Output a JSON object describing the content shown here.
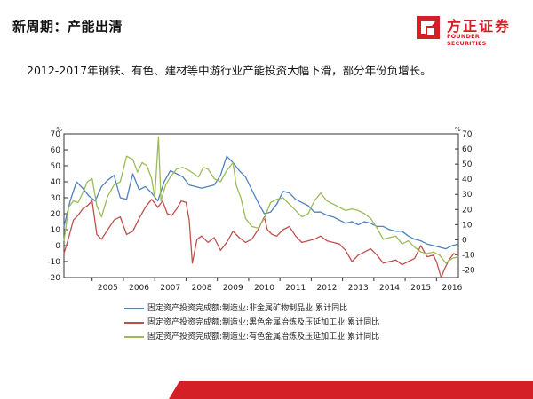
{
  "header": {
    "title": "新周期：产能出清",
    "subtitle": "2012-2017年钢铁、有色、建材等中游行业产能投资大幅下滑，部分年份负增长。"
  },
  "logo": {
    "name_cn": "方正证券",
    "name_en": "FOUNDER SECURITIES",
    "color": "#d51f26"
  },
  "chart_data": {
    "type": "line",
    "x_tick_labels": [
      "2005",
      "2006",
      "2007",
      "2008",
      "2009",
      "2010",
      "2011",
      "2012",
      "2013",
      "2014",
      "2015",
      "2016"
    ],
    "x_range": [
      2004.1,
      2016.7
    ],
    "y_left": {
      "unit": "%",
      "ticks": [
        -20,
        -10,
        0,
        10,
        20,
        30,
        40,
        50,
        60,
        70
      ],
      "range": [
        -20,
        70
      ]
    },
    "y_right": {
      "unit": "%",
      "ticks": [
        -20,
        -10,
        0,
        10,
        20,
        30,
        40,
        50,
        60,
        70
      ],
      "range": [
        -25,
        70
      ]
    },
    "grid": false,
    "legend_position": "bottom",
    "series": [
      {
        "name": "固定资产投资完成额:制造业:非金属矿物制品业:累计同比",
        "color": "#4f81bd",
        "axis": "left",
        "points": [
          [
            2004.1,
            12
          ],
          [
            2004.3,
            28
          ],
          [
            2004.5,
            40
          ],
          [
            2004.7,
            36
          ],
          [
            2004.9,
            31
          ],
          [
            2005.1,
            28
          ],
          [
            2005.3,
            37
          ],
          [
            2005.5,
            41
          ],
          [
            2005.7,
            44
          ],
          [
            2005.9,
            30
          ],
          [
            2006.1,
            29
          ],
          [
            2006.3,
            45
          ],
          [
            2006.5,
            35
          ],
          [
            2006.7,
            37
          ],
          [
            2006.9,
            33
          ],
          [
            2007.1,
            28
          ],
          [
            2007.3,
            40
          ],
          [
            2007.5,
            47
          ],
          [
            2007.7,
            45
          ],
          [
            2007.9,
            43
          ],
          [
            2008.1,
            38
          ],
          [
            2008.3,
            37
          ],
          [
            2008.5,
            36
          ],
          [
            2008.7,
            37
          ],
          [
            2008.9,
            38
          ],
          [
            2009.1,
            44
          ],
          [
            2009.3,
            56
          ],
          [
            2009.5,
            52
          ],
          [
            2009.7,
            47
          ],
          [
            2009.9,
            43
          ],
          [
            2010.1,
            35
          ],
          [
            2010.3,
            27
          ],
          [
            2010.5,
            20
          ],
          [
            2010.7,
            21
          ],
          [
            2010.9,
            26
          ],
          [
            2011.1,
            34
          ],
          [
            2011.3,
            33
          ],
          [
            2011.5,
            29
          ],
          [
            2011.7,
            27
          ],
          [
            2011.9,
            25
          ],
          [
            2012.1,
            21
          ],
          [
            2012.3,
            21
          ],
          [
            2012.5,
            19
          ],
          [
            2012.7,
            18
          ],
          [
            2012.9,
            16
          ],
          [
            2013.1,
            14
          ],
          [
            2013.3,
            15
          ],
          [
            2013.5,
            13
          ],
          [
            2013.7,
            15
          ],
          [
            2013.9,
            14
          ],
          [
            2014.1,
            12
          ],
          [
            2014.3,
            12
          ],
          [
            2014.5,
            10
          ],
          [
            2014.7,
            9
          ],
          [
            2014.9,
            9
          ],
          [
            2015.1,
            6
          ],
          [
            2015.3,
            4
          ],
          [
            2015.5,
            3
          ],
          [
            2015.7,
            1
          ],
          [
            2015.9,
            0
          ],
          [
            2016.1,
            -1
          ],
          [
            2016.3,
            -2
          ],
          [
            2016.5,
            0
          ],
          [
            2016.7,
            1
          ]
        ]
      },
      {
        "name": "固定资产投资完成额:制造业:黑色金属冶炼及压延加工业:累计同比",
        "color": "#c0504d",
        "axis": "left",
        "points": [
          [
            2004.1,
            -5
          ],
          [
            2004.25,
            5
          ],
          [
            2004.4,
            16
          ],
          [
            2004.55,
            19
          ],
          [
            2004.7,
            23
          ],
          [
            2004.85,
            25
          ],
          [
            2005.0,
            28
          ],
          [
            2005.15,
            7
          ],
          [
            2005.3,
            4
          ],
          [
            2005.5,
            10
          ],
          [
            2005.7,
            16
          ],
          [
            2005.9,
            18
          ],
          [
            2006.1,
            7
          ],
          [
            2006.3,
            9
          ],
          [
            2006.5,
            17
          ],
          [
            2006.7,
            24
          ],
          [
            2006.9,
            29
          ],
          [
            2007.1,
            24
          ],
          [
            2007.25,
            28
          ],
          [
            2007.4,
            20
          ],
          [
            2007.55,
            19
          ],
          [
            2007.7,
            23
          ],
          [
            2007.85,
            28
          ],
          [
            2008.0,
            27
          ],
          [
            2008.1,
            16
          ],
          [
            2008.2,
            -11
          ],
          [
            2008.35,
            4
          ],
          [
            2008.5,
            6
          ],
          [
            2008.7,
            2
          ],
          [
            2008.9,
            5
          ],
          [
            2009.1,
            -3
          ],
          [
            2009.3,
            2
          ],
          [
            2009.5,
            9
          ],
          [
            2009.7,
            5
          ],
          [
            2009.9,
            2
          ],
          [
            2010.1,
            4
          ],
          [
            2010.3,
            10
          ],
          [
            2010.5,
            18
          ],
          [
            2010.6,
            10
          ],
          [
            2010.75,
            7
          ],
          [
            2010.9,
            6
          ],
          [
            2011.1,
            10
          ],
          [
            2011.3,
            12
          ],
          [
            2011.5,
            6
          ],
          [
            2011.7,
            2
          ],
          [
            2011.9,
            3
          ],
          [
            2012.1,
            4
          ],
          [
            2012.3,
            6
          ],
          [
            2012.5,
            3
          ],
          [
            2012.7,
            2
          ],
          [
            2012.9,
            1
          ],
          [
            2013.1,
            -3
          ],
          [
            2013.3,
            -10
          ],
          [
            2013.5,
            -6
          ],
          [
            2013.7,
            -4
          ],
          [
            2013.9,
            -2
          ],
          [
            2014.1,
            -6
          ],
          [
            2014.3,
            -11
          ],
          [
            2014.5,
            -10
          ],
          [
            2014.7,
            -9
          ],
          [
            2014.9,
            -12
          ],
          [
            2015.1,
            -10
          ],
          [
            2015.3,
            -8
          ],
          [
            2015.5,
            0
          ],
          [
            2015.7,
            -7
          ],
          [
            2015.9,
            -6
          ],
          [
            2016.0,
            -10
          ],
          [
            2016.15,
            -20
          ],
          [
            2016.25,
            -15
          ],
          [
            2016.4,
            -9
          ],
          [
            2016.55,
            -5
          ],
          [
            2016.7,
            -6
          ]
        ]
      },
      {
        "name": "固定资产投资完成额:制造业:有色金属冶炼及压延加工业:累计同比",
        "color": "#9bbb59",
        "axis": "left",
        "points": [
          [
            2004.1,
            3
          ],
          [
            2004.25,
            24
          ],
          [
            2004.4,
            28
          ],
          [
            2004.55,
            27
          ],
          [
            2004.7,
            33
          ],
          [
            2004.85,
            40
          ],
          [
            2005.0,
            42
          ],
          [
            2005.15,
            25
          ],
          [
            2005.3,
            18
          ],
          [
            2005.5,
            31
          ],
          [
            2005.7,
            38
          ],
          [
            2005.9,
            40
          ],
          [
            2006.1,
            56
          ],
          [
            2006.3,
            54
          ],
          [
            2006.45,
            46
          ],
          [
            2006.6,
            52
          ],
          [
            2006.75,
            50
          ],
          [
            2006.9,
            42
          ],
          [
            2007.0,
            30
          ],
          [
            2007.12,
            68
          ],
          [
            2007.2,
            28
          ],
          [
            2007.35,
            38
          ],
          [
            2007.5,
            43
          ],
          [
            2007.7,
            48
          ],
          [
            2007.9,
            49
          ],
          [
            2008.1,
            47
          ],
          [
            2008.25,
            45
          ],
          [
            2008.4,
            43
          ],
          [
            2008.55,
            49
          ],
          [
            2008.7,
            48
          ],
          [
            2008.9,
            42
          ],
          [
            2009.1,
            40
          ],
          [
            2009.3,
            47
          ],
          [
            2009.5,
            52
          ],
          [
            2009.6,
            38
          ],
          [
            2009.75,
            30
          ],
          [
            2009.9,
            17
          ],
          [
            2010.1,
            12
          ],
          [
            2010.3,
            11
          ],
          [
            2010.5,
            17
          ],
          [
            2010.7,
            27
          ],
          [
            2010.9,
            29
          ],
          [
            2011.1,
            30
          ],
          [
            2011.3,
            26
          ],
          [
            2011.5,
            22
          ],
          [
            2011.7,
            18
          ],
          [
            2011.9,
            20
          ],
          [
            2012.1,
            28
          ],
          [
            2012.3,
            33
          ],
          [
            2012.5,
            28
          ],
          [
            2012.7,
            26
          ],
          [
            2012.9,
            24
          ],
          [
            2013.1,
            22
          ],
          [
            2013.3,
            23
          ],
          [
            2013.5,
            22
          ],
          [
            2013.7,
            20
          ],
          [
            2013.9,
            17
          ],
          [
            2014.1,
            11
          ],
          [
            2014.3,
            4
          ],
          [
            2014.5,
            5
          ],
          [
            2014.7,
            6
          ],
          [
            2014.9,
            1
          ],
          [
            2015.1,
            3
          ],
          [
            2015.3,
            -1
          ],
          [
            2015.5,
            -4
          ],
          [
            2015.7,
            -5
          ],
          [
            2015.9,
            -4
          ],
          [
            2016.1,
            -6
          ],
          [
            2016.3,
            -11
          ],
          [
            2016.5,
            -8
          ],
          [
            2016.7,
            -7
          ]
        ]
      }
    ]
  }
}
